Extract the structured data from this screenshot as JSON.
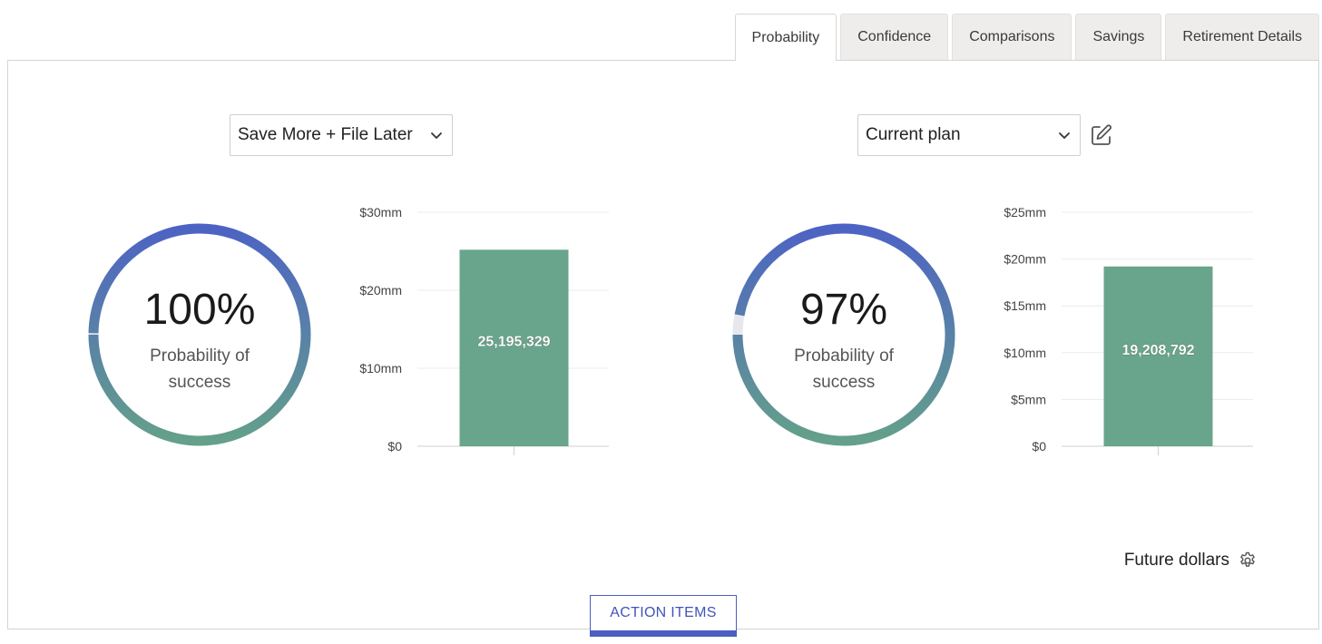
{
  "tabs": [
    {
      "label": "Probability",
      "active": true
    },
    {
      "label": "Confidence",
      "active": false
    },
    {
      "label": "Comparisons",
      "active": false
    },
    {
      "label": "Savings",
      "active": false
    },
    {
      "label": "Retirement Details",
      "active": false
    }
  ],
  "left": {
    "plan_select": "Save More + File Later",
    "probability": "100%",
    "probability_fraction": 1.0,
    "probability_label": "Probability of success"
  },
  "right": {
    "plan_select": "Current plan",
    "probability": "97%",
    "probability_fraction": 0.97,
    "probability_label": "Probability of success"
  },
  "colors": {
    "ring_top": "#4d63c4",
    "ring_bottom": "#64a08a",
    "ring_track": "#e7e8ee",
    "bar": "#69a58d",
    "button": "#4a5fc1"
  },
  "chart_data": [
    {
      "type": "bar",
      "categories": [
        ""
      ],
      "values": [
        25195329
      ],
      "data_labels": [
        "25,195,329"
      ],
      "ylim": [
        0,
        30000000
      ],
      "yticks": [
        {
          "value": 0,
          "label": "$0"
        },
        {
          "value": 10000000,
          "label": "$10mm"
        },
        {
          "value": 20000000,
          "label": "$20mm"
        },
        {
          "value": 30000000,
          "label": "$30mm"
        }
      ],
      "grid": true
    },
    {
      "type": "bar",
      "categories": [
        ""
      ],
      "values": [
        19208792
      ],
      "data_labels": [
        "19,208,792"
      ],
      "ylim": [
        0,
        25000000
      ],
      "yticks": [
        {
          "value": 0,
          "label": "$0"
        },
        {
          "value": 5000000,
          "label": "$5mm"
        },
        {
          "value": 10000000,
          "label": "$10mm"
        },
        {
          "value": 15000000,
          "label": "$15mm"
        },
        {
          "value": 20000000,
          "label": "$20mm"
        },
        {
          "value": 25000000,
          "label": "$25mm"
        }
      ],
      "grid": true
    }
  ],
  "footer": {
    "dollar_mode": "Future dollars",
    "action_button": "ACTION ITEMS"
  },
  "icons": {
    "edit": "edit-icon",
    "settings": "gear-icon",
    "dropdown": "chevron-down-icon"
  }
}
